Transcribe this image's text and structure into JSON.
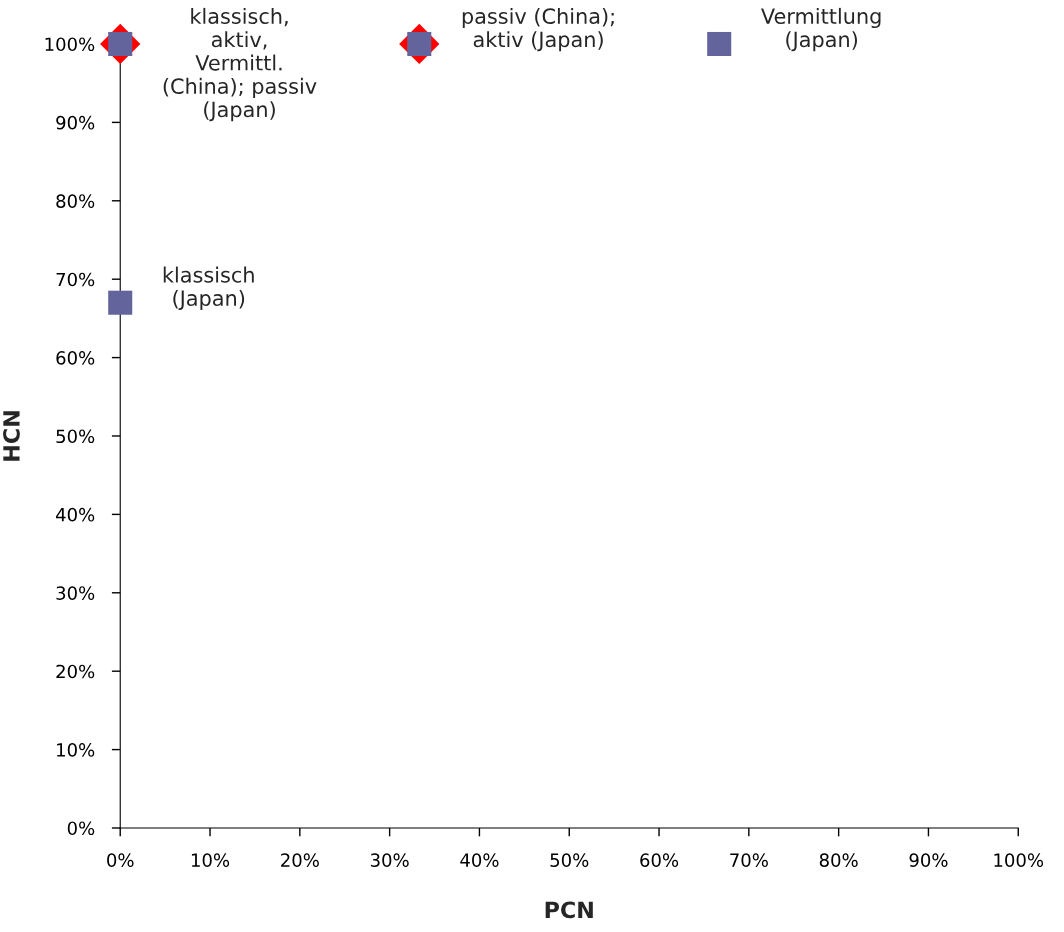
{
  "chart_data": {
    "type": "scatter",
    "xlabel": "PCN",
    "ylabel": "HCN",
    "xlim": [
      0,
      100
    ],
    "ylim": [
      0,
      100
    ],
    "xticks": [
      {
        "value": 0,
        "label": "0%"
      },
      {
        "value": 10,
        "label": "10%"
      },
      {
        "value": 20,
        "label": "20%"
      },
      {
        "value": 30,
        "label": "30%"
      },
      {
        "value": 40,
        "label": "40%"
      },
      {
        "value": 50,
        "label": "50%"
      },
      {
        "value": 60,
        "label": "60%"
      },
      {
        "value": 70,
        "label": "70%"
      },
      {
        "value": 80,
        "label": "80%"
      },
      {
        "value": 90,
        "label": "90%"
      },
      {
        "value": 100,
        "label": "100%"
      }
    ],
    "yticks": [
      {
        "value": 0,
        "label": "0%"
      },
      {
        "value": 10,
        "label": "10%"
      },
      {
        "value": 20,
        "label": "20%"
      },
      {
        "value": 30,
        "label": "30%"
      },
      {
        "value": 40,
        "label": "40%"
      },
      {
        "value": 50,
        "label": "50%"
      },
      {
        "value": 60,
        "label": "60%"
      },
      {
        "value": 70,
        "label": "70%"
      },
      {
        "value": 80,
        "label": "80%"
      },
      {
        "value": 90,
        "label": "90%"
      },
      {
        "value": 100,
        "label": "100%"
      }
    ],
    "grid": false,
    "legend": false,
    "series": [
      {
        "color": "#ff0000",
        "marker": "diamond",
        "x": [
          0,
          33.3
        ],
        "values": [
          100,
          100
        ]
      },
      {
        "color": "#64649c",
        "marker": "square",
        "x": [
          0,
          0,
          33.3,
          66.7
        ],
        "values": [
          100,
          67,
          100,
          100
        ]
      }
    ],
    "annotations": [
      {
        "text": "klassisch,\naktiv,\nVermittl.\n(China); passiv\n(Japan)",
        "x": 0,
        "y": 100
      },
      {
        "text": "klassisch\n(Japan)",
        "x": 0,
        "y": 67
      },
      {
        "text": "passiv (China);\naktiv (Japan)",
        "x": 33.3,
        "y": 100
      },
      {
        "text": "Vermittlung\n(Japan)",
        "x": 66.7,
        "y": 100
      }
    ]
  }
}
